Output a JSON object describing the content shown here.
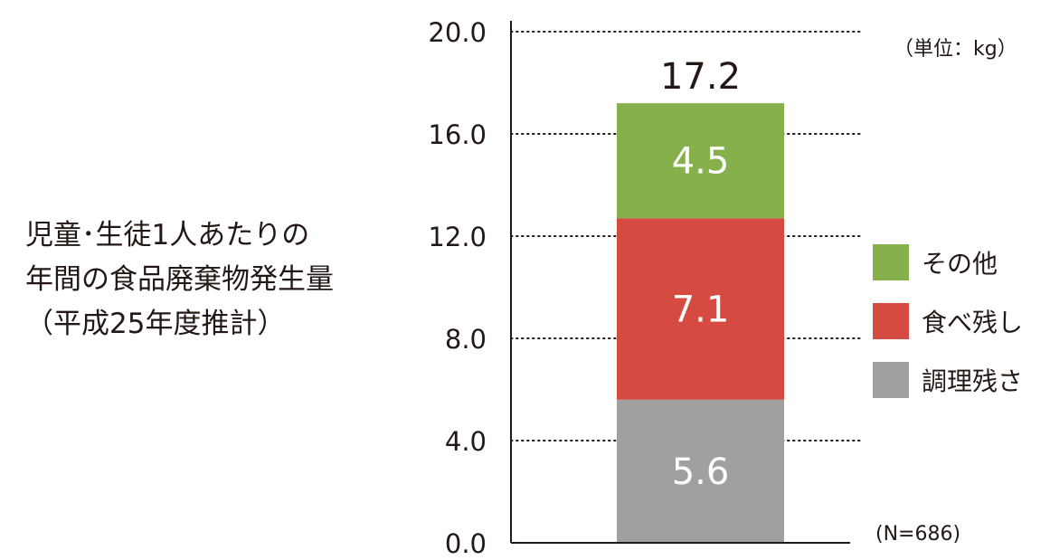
{
  "description": {
    "lines": [
      "児童･生徒1人あたりの",
      "年間の食品廃棄物発生量",
      "（平成25年度推計）"
    ]
  },
  "unit_note": "（単位：kg）",
  "n_note": "(N=686)",
  "chart_data": {
    "type": "bar",
    "stacked": true,
    "categories": [
      ""
    ],
    "series": [
      {
        "name": "調理残さ",
        "values": [
          5.6
        ],
        "label": "5.6",
        "color": "#a0a0a0"
      },
      {
        "name": "食べ残し",
        "values": [
          7.1
        ],
        "label": "7.1",
        "color": "#d54b41"
      },
      {
        "name": "その他",
        "values": [
          4.5
        ],
        "label": "4.5",
        "color": "#86b04c"
      }
    ],
    "total": 17.2,
    "total_label": "17.2",
    "ylim": [
      0,
      20
    ],
    "yticks": [
      0,
      4,
      8,
      12,
      16,
      20
    ],
    "ytick_labels": [
      "0.0",
      "4.0",
      "8.0",
      "12.0",
      "16.0",
      "20.0"
    ],
    "grid": true,
    "legend_position": "right",
    "legend_order": [
      "その他",
      "食べ残し",
      "調理残さ"
    ]
  }
}
